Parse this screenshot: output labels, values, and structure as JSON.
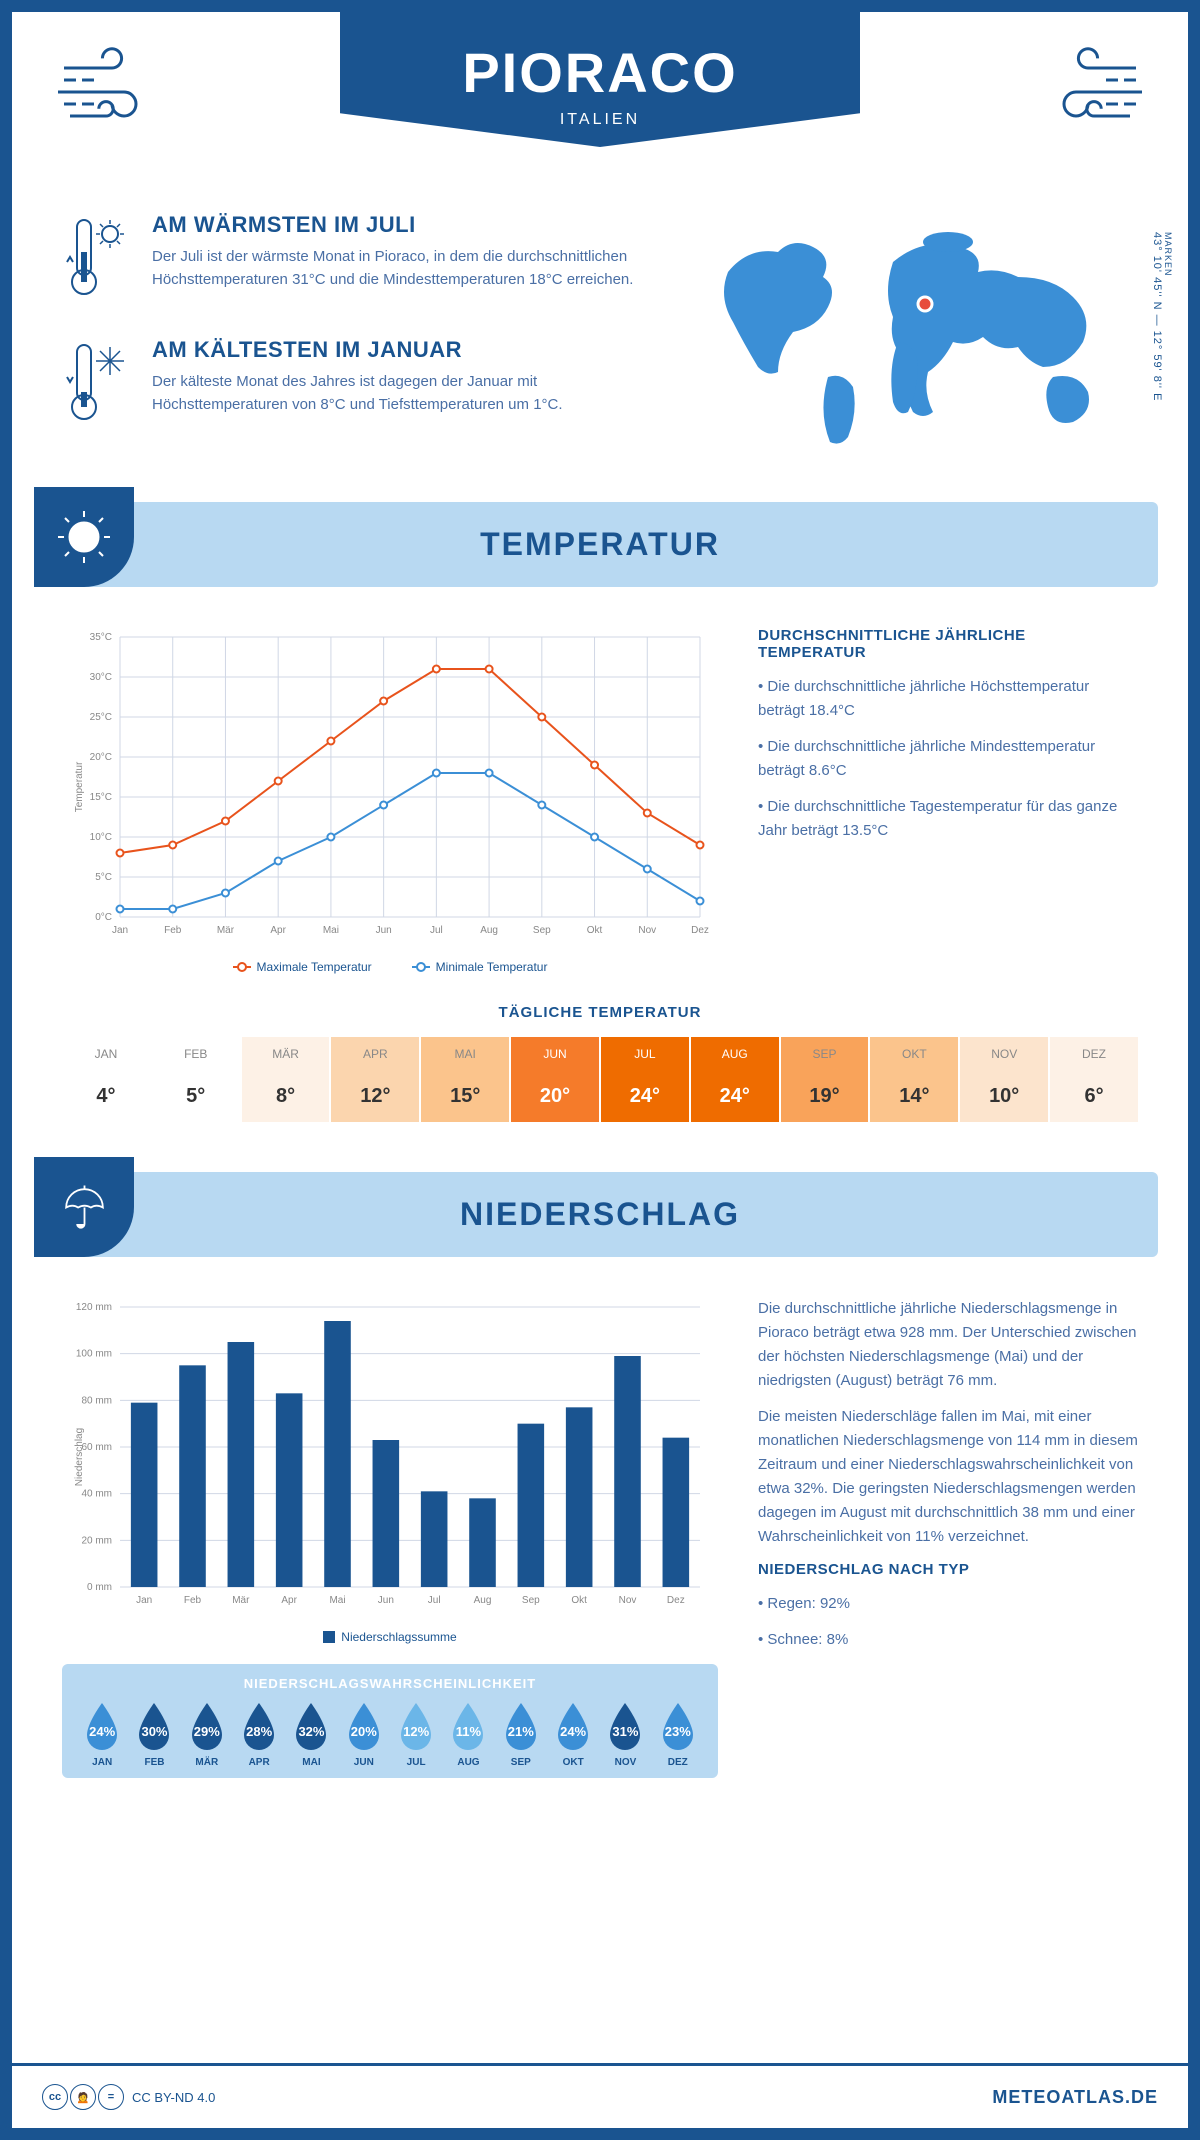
{
  "header": {
    "title": "PIORACO",
    "subtitle": "ITALIEN"
  },
  "location": {
    "region": "MARKEN",
    "coords": "43° 10' 45'' N — 12° 59' 8'' E",
    "marker_color": "#e74c3c"
  },
  "warmest": {
    "heading": "AM WÄRMSTEN IM JULI",
    "text": "Der Juli ist der wärmste Monat in Pioraco, in dem die durchschnittlichen Höchsttemperaturen 31°C und die Mindesttemperaturen 18°C erreichen."
  },
  "coldest": {
    "heading": "AM KÄLTESTEN IM JANUAR",
    "text": "Der kälteste Monat des Jahres ist dagegen der Januar mit Höchsttemperaturen von 8°C und Tiefsttemperaturen um 1°C."
  },
  "temperature_section": {
    "title": "TEMPERATUR",
    "chart": {
      "type": "line",
      "months": [
        "Jan",
        "Feb",
        "Mär",
        "Apr",
        "Mai",
        "Jun",
        "Jul",
        "Aug",
        "Sep",
        "Okt",
        "Nov",
        "Dez"
      ],
      "ylabel": "Temperatur",
      "ylim": [
        0,
        35
      ],
      "ytick_step": 5,
      "grid_color": "#d0d7e5",
      "max": {
        "label": "Maximale Temperatur",
        "color": "#e8531c",
        "values": [
          8,
          9,
          12,
          17,
          22,
          27,
          31,
          31,
          25,
          19,
          13,
          9
        ]
      },
      "min": {
        "label": "Minimale Temperatur",
        "color": "#3b8fd6",
        "values": [
          1,
          1,
          3,
          7,
          10,
          14,
          18,
          18,
          14,
          10,
          6,
          2
        ]
      }
    },
    "info_heading": "DURCHSCHNITTLICHE JÄHRLICHE TEMPERATUR",
    "info_points": [
      "• Die durchschnittliche jährliche Höchsttemperatur beträgt 18.4°C",
      "• Die durchschnittliche jährliche Mindesttemperatur beträgt 8.6°C",
      "• Die durchschnittliche Tagestemperatur für das ganze Jahr beträgt 13.5°C"
    ],
    "daily_heading": "TÄGLICHE TEMPERATUR",
    "daily": {
      "months": [
        "JAN",
        "FEB",
        "MÄR",
        "APR",
        "MAI",
        "JUN",
        "JUL",
        "AUG",
        "SEP",
        "OKT",
        "NOV",
        "DEZ"
      ],
      "values": [
        "4°",
        "5°",
        "8°",
        "12°",
        "15°",
        "20°",
        "24°",
        "24°",
        "19°",
        "14°",
        "10°",
        "6°"
      ],
      "numeric": [
        4,
        5,
        8,
        12,
        15,
        20,
        24,
        24,
        19,
        14,
        10,
        6
      ],
      "scale_colors": [
        "#ffffff",
        "#fdf1e6",
        "#fce4cd",
        "#fbd5ae",
        "#fbc48c",
        "#f9a35a",
        "#f57b2a",
        "#ef6c00"
      ],
      "text_dark": "#333333",
      "text_light": "#ffffff"
    }
  },
  "precip_section": {
    "title": "NIEDERSCHLAG",
    "bar_chart": {
      "type": "bar",
      "months": [
        "Jan",
        "Feb",
        "Mär",
        "Apr",
        "Mai",
        "Jun",
        "Jul",
        "Aug",
        "Sep",
        "Okt",
        "Nov",
        "Dez"
      ],
      "values": [
        79,
        95,
        105,
        83,
        114,
        63,
        41,
        38,
        70,
        77,
        99,
        64
      ],
      "legend": "Niederschlagssumme",
      "ylabel": "Niederschlag",
      "ylim": [
        0,
        120
      ],
      "ytick_step": 20,
      "bar_color": "#1a5490",
      "grid_color": "#d0d7e5"
    },
    "text1": "Die durchschnittliche jährliche Niederschlagsmenge in Pioraco beträgt etwa 928 mm. Der Unterschied zwischen der höchsten Niederschlagsmenge (Mai) und der niedrigsten (August) beträgt 76 mm.",
    "text2": "Die meisten Niederschläge fallen im Mai, mit einer monatlichen Niederschlagsmenge von 114 mm in diesem Zeitraum und einer Niederschlagswahrscheinlichkeit von etwa 32%. Die geringsten Niederschlagsmengen werden dagegen im August mit durchschnittlich 38 mm und einer Wahrscheinlichkeit von 11% verzeichnet.",
    "probability": {
      "heading": "NIEDERSCHLAGSWAHRSCHEINLICHKEIT",
      "months": [
        "JAN",
        "FEB",
        "MÄR",
        "APR",
        "MAI",
        "JUN",
        "JUL",
        "AUG",
        "SEP",
        "OKT",
        "NOV",
        "DEZ"
      ],
      "values": [
        "24%",
        "30%",
        "29%",
        "28%",
        "32%",
        "20%",
        "12%",
        "11%",
        "21%",
        "24%",
        "31%",
        "23%"
      ],
      "numeric": [
        24,
        30,
        29,
        28,
        32,
        20,
        12,
        11,
        21,
        24,
        31,
        23
      ],
      "color_dark": "#1a5490",
      "color_mid": "#3b8fd6",
      "color_light": "#6bb6e8"
    },
    "by_type_heading": "NIEDERSCHLAG NACH TYP",
    "by_type": [
      "• Regen: 92%",
      "• Schnee: 8%"
    ]
  },
  "footer": {
    "license": "CC BY-ND 4.0",
    "site": "METEOATLAS.DE"
  },
  "palette": {
    "primary": "#1a5490",
    "light_blue": "#b8d9f2",
    "map_blue": "#3b8fd6"
  }
}
